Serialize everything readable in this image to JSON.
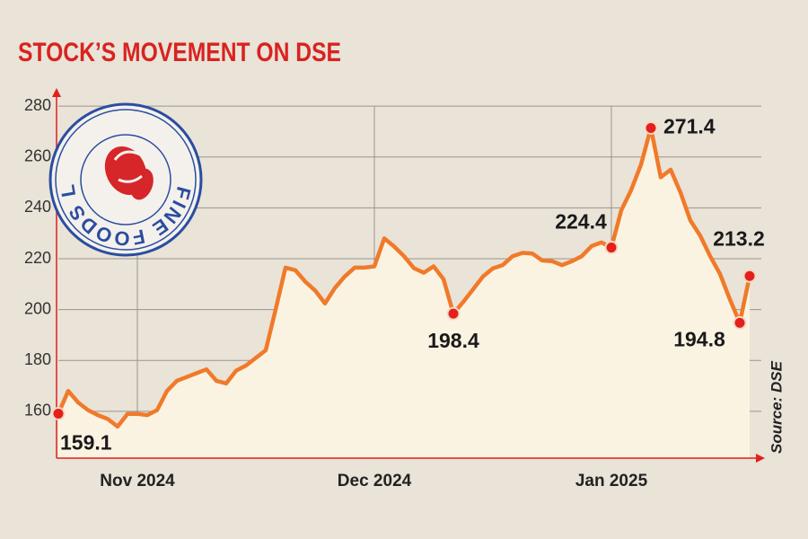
{
  "chart_data": {
    "type": "line",
    "title": "STOCK’S MOVEMENT ON DSE",
    "logo_text": "FINE FOODS LIMITED",
    "source": "Source: DSE",
    "categories": [
      null,
      null,
      null,
      null,
      null,
      null,
      null,
      null,
      "Nov 2024",
      null,
      null,
      null,
      null,
      null,
      null,
      null,
      null,
      null,
      null,
      null,
      null,
      null,
      null,
      null,
      null,
      null,
      null,
      null,
      null,
      null,
      null,
      null,
      "Dec 2024",
      null,
      null,
      null,
      null,
      null,
      null,
      null,
      null,
      null,
      null,
      null,
      null,
      null,
      null,
      null,
      null,
      null,
      null,
      null,
      null,
      null,
      null,
      null,
      "Jan 2025",
      null,
      null,
      null,
      null,
      null,
      null,
      null,
      null,
      null,
      null,
      null,
      null,
      null,
      null
    ],
    "values": [
      159.1,
      168,
      163.5,
      160.5,
      158.5,
      157,
      154,
      159,
      159,
      158.5,
      160.5,
      168,
      172,
      173.5,
      175,
      176.5,
      172,
      171,
      176,
      178,
      181,
      184,
      200,
      216.5,
      215.5,
      211,
      207.5,
      202.4,
      208.5,
      213,
      216.5,
      216.5,
      217,
      228,
      224.8,
      221,
      216.3,
      214.5,
      217,
      212,
      198.4,
      203,
      208,
      213,
      216.2,
      217.5,
      221,
      222.3,
      222,
      219.3,
      219,
      217.5,
      219,
      221,
      225,
      226.4,
      224.4,
      239,
      247,
      257,
      271.4,
      252,
      255,
      246,
      235,
      229,
      221,
      214,
      204,
      194.8,
      213.2
    ],
    "value_labels": [
      "159.1",
      null,
      null,
      null,
      null,
      null,
      null,
      null,
      null,
      null,
      null,
      null,
      null,
      null,
      null,
      null,
      null,
      null,
      null,
      null,
      null,
      null,
      null,
      null,
      null,
      null,
      null,
      null,
      null,
      null,
      null,
      null,
      null,
      null,
      null,
      null,
      null,
      null,
      null,
      null,
      "198.4",
      null,
      null,
      null,
      null,
      null,
      null,
      null,
      null,
      null,
      null,
      null,
      null,
      null,
      null,
      null,
      "224.4",
      null,
      null,
      null,
      "271.4",
      null,
      null,
      null,
      null,
      null,
      null,
      null,
      null,
      "194.8",
      "213.2"
    ],
    "color": "#f07a2a",
    "marker_color": "#e3201b",
    "ylim": [
      141.6,
      286.4
    ],
    "yticks": [
      160,
      180,
      200,
      220,
      240,
      260,
      280
    ],
    "grid": true
  }
}
